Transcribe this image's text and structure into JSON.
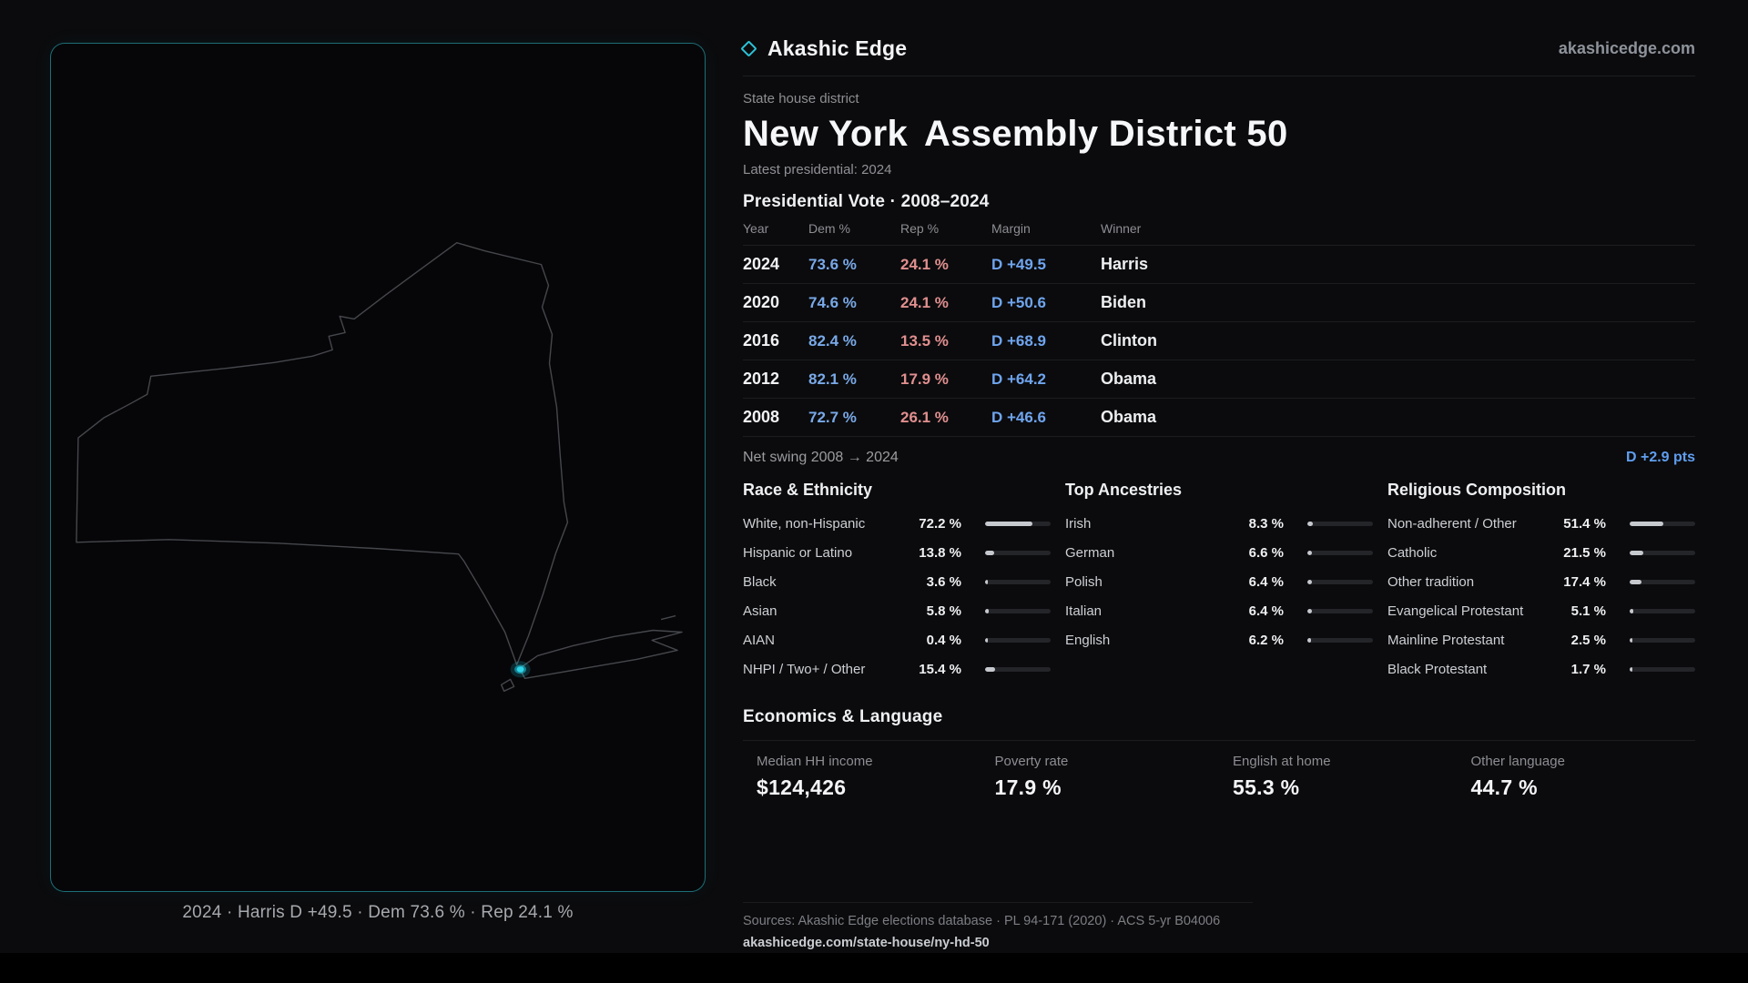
{
  "theme": {
    "background": "#0b0b0d",
    "accent_cyan": "#2cc3d8",
    "dem_blue": "#79a9e8",
    "rep_red": "#e18f8f",
    "margin_blue": "#6fa5ef",
    "bar_fill": "#c6c9ce"
  },
  "header": {
    "brand": "Akashic Edge",
    "domain": "akashicedge.com"
  },
  "hero": {
    "kicker": "State house district",
    "state": "New York",
    "district": "Assembly District 50",
    "latest": "Latest presidential: 2024"
  },
  "map": {
    "caption": "2024 · Harris D +49.5 · Dem 73.6 % · Rep 24.1 %"
  },
  "presidential": {
    "title": "Presidential Vote · 2008–2024",
    "columns": [
      "Year",
      "Dem %",
      "Rep %",
      "Margin",
      "Winner"
    ],
    "rows": [
      {
        "year": "2024",
        "dem": "73.6 %",
        "rep": "24.1 %",
        "margin": "D +49.5",
        "winner": "Harris"
      },
      {
        "year": "2020",
        "dem": "74.6 %",
        "rep": "24.1 %",
        "margin": "D +50.6",
        "winner": "Biden"
      },
      {
        "year": "2016",
        "dem": "82.4 %",
        "rep": "13.5 %",
        "margin": "D +68.9",
        "winner": "Clinton"
      },
      {
        "year": "2012",
        "dem": "82.1 %",
        "rep": "17.9 %",
        "margin": "D +64.2",
        "winner": "Obama"
      },
      {
        "year": "2008",
        "dem": "72.7 %",
        "rep": "26.1 %",
        "margin": "D +46.6",
        "winner": "Obama"
      }
    ],
    "net_swing_label": "Net swing 2008 → 2024",
    "net_swing_value": "D +2.9 pts"
  },
  "demographics": [
    {
      "title": "Race & Ethnicity",
      "rows": [
        {
          "label": "White, non-Hispanic",
          "value": "72.2 %",
          "pct": 72.2
        },
        {
          "label": "Hispanic or Latino",
          "value": "13.8 %",
          "pct": 13.8
        },
        {
          "label": "Black",
          "value": "3.6 %",
          "pct": 3.6
        },
        {
          "label": "Asian",
          "value": "5.8 %",
          "pct": 5.8
        },
        {
          "label": "AIAN",
          "value": "0.4 %",
          "pct": 0.4
        },
        {
          "label": "NHPI / Two+ / Other",
          "value": "15.4 %",
          "pct": 15.4
        }
      ]
    },
    {
      "title": "Top Ancestries",
      "rows": [
        {
          "label": "Irish",
          "value": "8.3 %",
          "pct": 8.3
        },
        {
          "label": "German",
          "value": "6.6 %",
          "pct": 6.6
        },
        {
          "label": "Polish",
          "value": "6.4 %",
          "pct": 6.4
        },
        {
          "label": "Italian",
          "value": "6.4 %",
          "pct": 6.4
        },
        {
          "label": "English",
          "value": "6.2 %",
          "pct": 6.2
        }
      ]
    },
    {
      "title": "Religious Composition",
      "rows": [
        {
          "label": "Non-adherent / Other",
          "value": "51.4 %",
          "pct": 51.4
        },
        {
          "label": "Catholic",
          "value": "21.5 %",
          "pct": 21.5
        },
        {
          "label": "Other tradition",
          "value": "17.4 %",
          "pct": 17.4
        },
        {
          "label": "Evangelical Protestant",
          "value": "5.1 %",
          "pct": 5.1
        },
        {
          "label": "Mainline Protestant",
          "value": "2.5 %",
          "pct": 2.5
        },
        {
          "label": "Black Protestant",
          "value": "1.7 %",
          "pct": 1.7
        }
      ]
    }
  ],
  "economics": {
    "title": "Economics & Language",
    "stats": [
      {
        "label": "Median HH income",
        "value": "$124,426"
      },
      {
        "label": "Poverty rate",
        "value": "17.9 %"
      },
      {
        "label": "English at home",
        "value": "55.3 %"
      },
      {
        "label": "Other language",
        "value": "44.7 %"
      }
    ]
  },
  "footer": {
    "sources": "Sources: Akashic Edge elections database · PL 94-171 (2020) · ACS 5-yr B04006",
    "permalink": "akashicedge.com/state-house/ny-hd-50"
  }
}
